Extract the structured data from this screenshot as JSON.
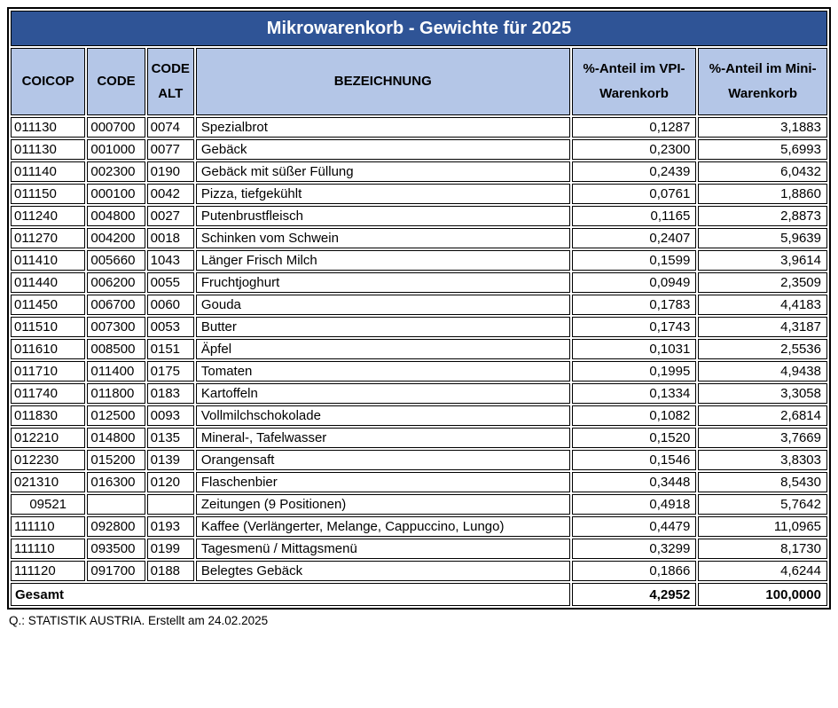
{
  "title": "Mikrowarenkorb - Gewichte für 2025",
  "colors": {
    "title_bg": "#2F5496",
    "title_text": "#FFFFFF",
    "header_bg": "#B4C6E7",
    "border": "#000000"
  },
  "header": {
    "coicop": "COICOP",
    "code": "CODE",
    "code_alt_line1": "CODE",
    "code_alt_line2": "ALT",
    "bezeichnung": "BEZEICHNUNG",
    "vpi_line1": "%-Anteil im VPI-",
    "vpi_line2": "Warenkorb",
    "mini_line1": "%-Anteil im Mini-",
    "mini_line2": "Warenkorb"
  },
  "rows": [
    {
      "coicop": "011130",
      "code": "000700",
      "code_alt": "0074",
      "bezeichnung": "Spezialbrot",
      "vpi": "0,1287",
      "mini": "3,1883"
    },
    {
      "coicop": "011130",
      "code": "001000",
      "code_alt": "0077",
      "bezeichnung": "Gebäck",
      "vpi": "0,2300",
      "mini": "5,6993"
    },
    {
      "coicop": "011140",
      "code": "002300",
      "code_alt": "0190",
      "bezeichnung": "Gebäck mit süßer Füllung",
      "vpi": "0,2439",
      "mini": "6,0432"
    },
    {
      "coicop": "011150",
      "code": "000100",
      "code_alt": "0042",
      "bezeichnung": "Pizza, tiefgekühlt",
      "vpi": "0,0761",
      "mini": "1,8860"
    },
    {
      "coicop": "011240",
      "code": "004800",
      "code_alt": "0027",
      "bezeichnung": "Putenbrustfleisch",
      "vpi": "0,1165",
      "mini": "2,8873"
    },
    {
      "coicop": "011270",
      "code": "004200",
      "code_alt": "0018",
      "bezeichnung": "Schinken vom Schwein",
      "vpi": "0,2407",
      "mini": "5,9639"
    },
    {
      "coicop": "011410",
      "code": "005660",
      "code_alt": "1043",
      "bezeichnung": "Länger Frisch Milch",
      "vpi": "0,1599",
      "mini": "3,9614"
    },
    {
      "coicop": "011440",
      "code": "006200",
      "code_alt": "0055",
      "bezeichnung": "Fruchtjoghurt",
      "vpi": "0,0949",
      "mini": "2,3509"
    },
    {
      "coicop": "011450",
      "code": "006700",
      "code_alt": "0060",
      "bezeichnung": "Gouda",
      "vpi": "0,1783",
      "mini": "4,4183"
    },
    {
      "coicop": "011510",
      "code": "007300",
      "code_alt": "0053",
      "bezeichnung": "Butter",
      "vpi": "0,1743",
      "mini": "4,3187"
    },
    {
      "coicop": "011610",
      "code": "008500",
      "code_alt": "0151",
      "bezeichnung": "Äpfel",
      "vpi": "0,1031",
      "mini": "2,5536"
    },
    {
      "coicop": "011710",
      "code": "011400",
      "code_alt": "0175",
      "bezeichnung": "Tomaten",
      "vpi": "0,1995",
      "mini": "4,9438"
    },
    {
      "coicop": "011740",
      "code": "011800",
      "code_alt": "0183",
      "bezeichnung": "Kartoffeln",
      "vpi": "0,1334",
      "mini": "3,3058"
    },
    {
      "coicop": "011830",
      "code": "012500",
      "code_alt": "0093",
      "bezeichnung": "Vollmilchschokolade",
      "vpi": "0,1082",
      "mini": "2,6814"
    },
    {
      "coicop": "012210",
      "code": "014800",
      "code_alt": "0135",
      "bezeichnung": "Mineral-, Tafelwasser",
      "vpi": "0,1520",
      "mini": "3,7669"
    },
    {
      "coicop": "012230",
      "code": "015200",
      "code_alt": "0139",
      "bezeichnung": "Orangensaft",
      "vpi": "0,1546",
      "mini": "3,8303"
    },
    {
      "coicop": "021310",
      "code": "016300",
      "code_alt": "0120",
      "bezeichnung": "Flaschenbier",
      "vpi": "0,3448",
      "mini": "8,5430"
    },
    {
      "coicop": "09521",
      "code": "",
      "code_alt": "",
      "bezeichnung": "Zeitungen (9 Positionen)",
      "vpi": "0,4918",
      "mini": "5,7642"
    },
    {
      "coicop": "111110",
      "code": "092800",
      "code_alt": "0193",
      "bezeichnung": "Kaffee (Verlängerter, Melange, Cappuccino, Lungo)",
      "vpi": "0,4479",
      "mini": "11,0965"
    },
    {
      "coicop": "111110",
      "code": "093500",
      "code_alt": "0199",
      "bezeichnung": "Tagesmenü / Mittagsmenü",
      "vpi": "0,3299",
      "mini": "8,1730"
    },
    {
      "coicop": "111120",
      "code": "091700",
      "code_alt": "0188",
      "bezeichnung": "Belegtes Gebäck",
      "vpi": "0,1866",
      "mini": "4,6244"
    }
  ],
  "total": {
    "label": "Gesamt",
    "vpi": "4,2952",
    "mini": "100,0000"
  },
  "footer": "Q.: STATISTIK AUSTRIA. Erstellt am 24.02.2025"
}
